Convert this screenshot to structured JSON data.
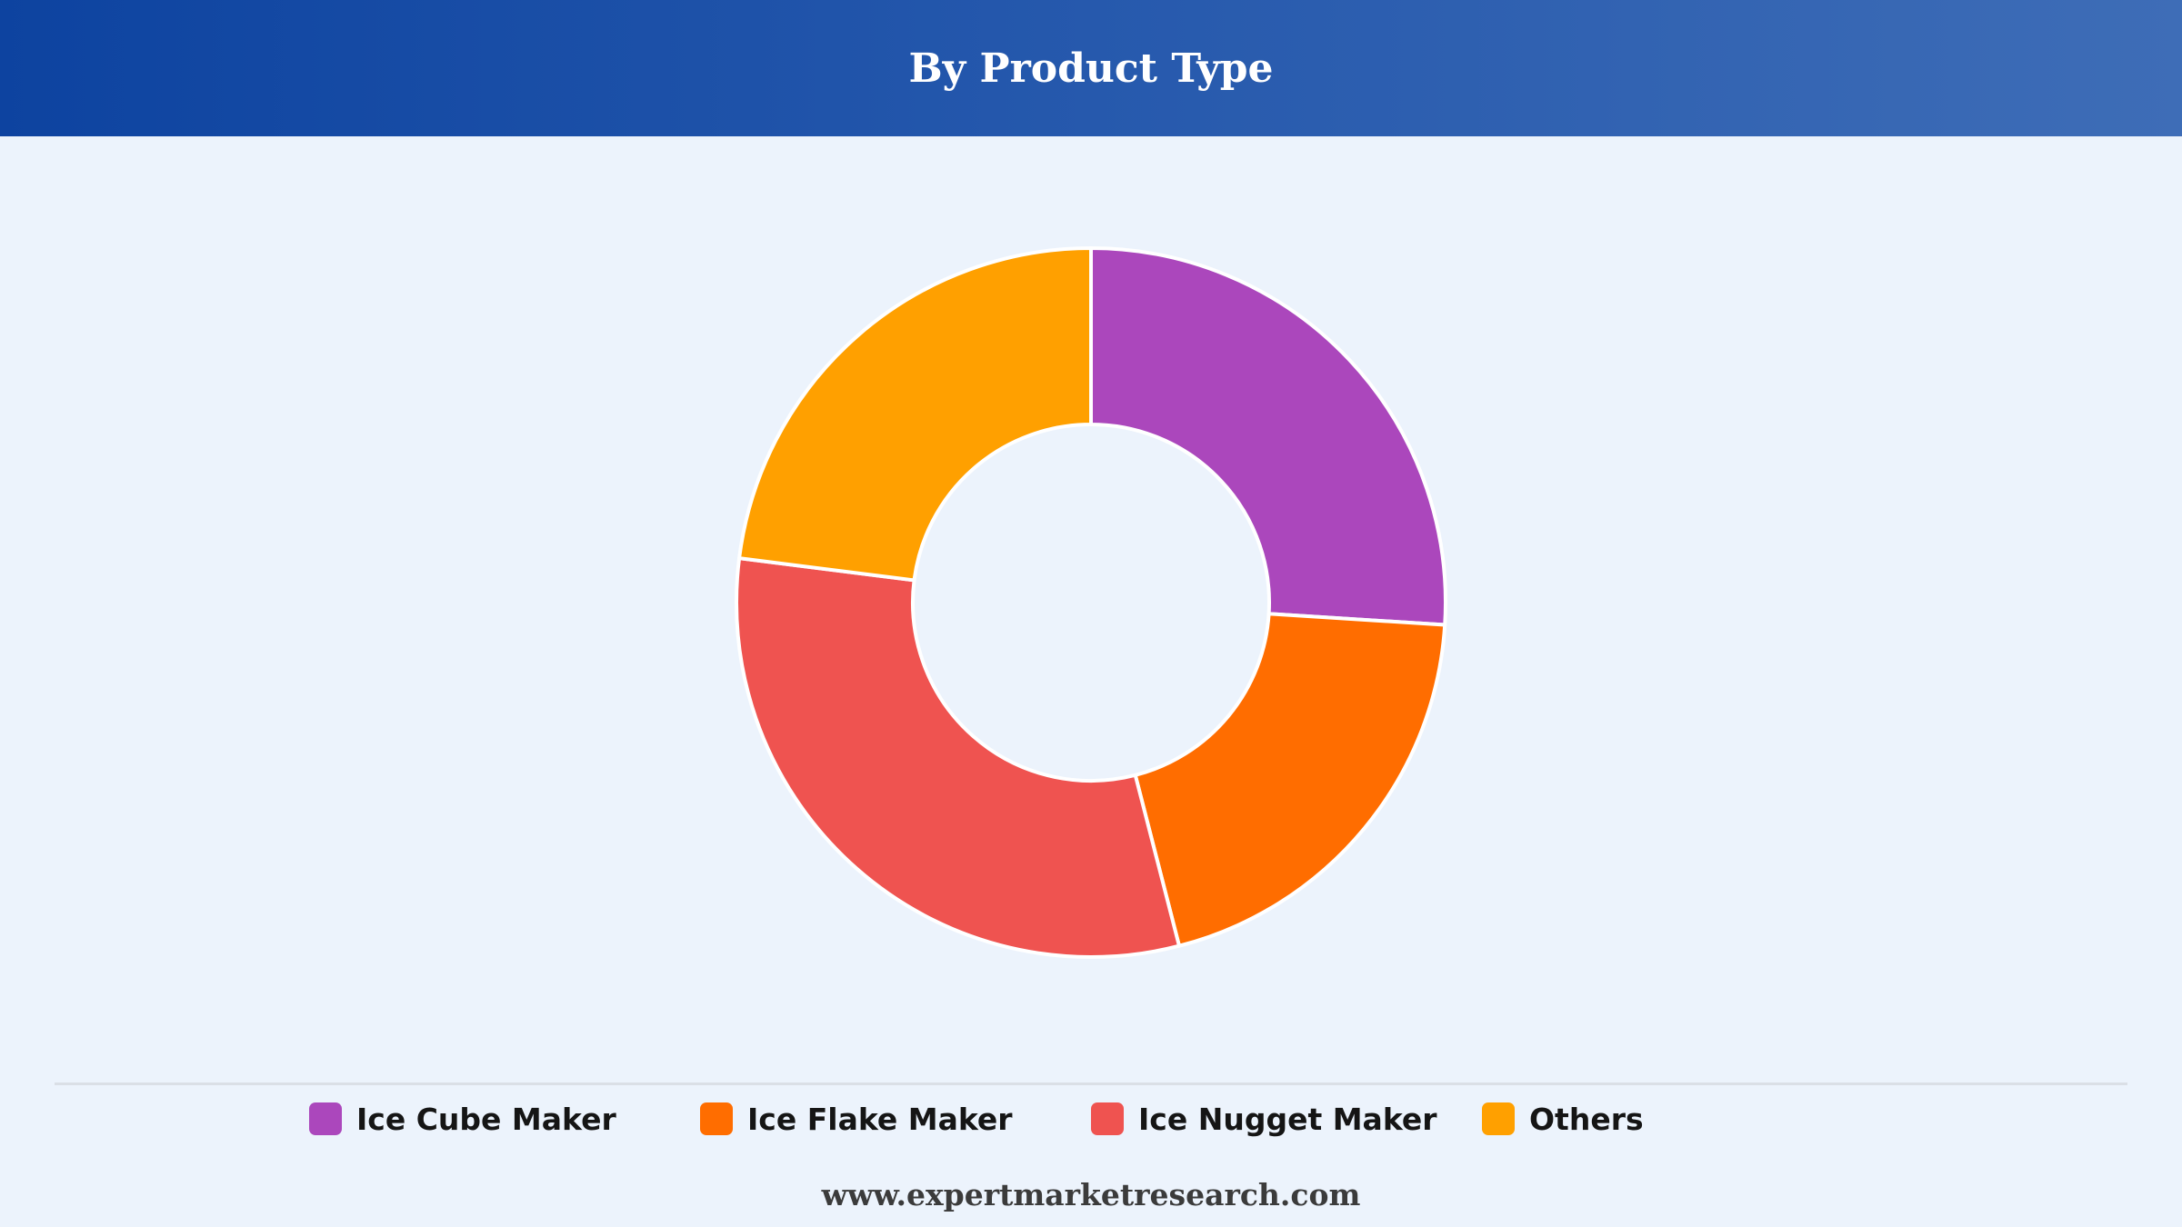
{
  "header": {
    "title": "By Product Type"
  },
  "chart_data": {
    "type": "pie",
    "variant": "donut",
    "title": "By Product Type",
    "categories": [
      "Ice Cube Maker",
      "Ice Flake Maker",
      "Ice Nugget Maker",
      "Others"
    ],
    "values": [
      26,
      20,
      31,
      23
    ],
    "unit": "%",
    "colors": [
      "#ab47bc",
      "#ff6d00",
      "#ef5350",
      "#ffa000"
    ],
    "legend_position": "bottom",
    "start_angle": "top, clockwise"
  },
  "legend": {
    "items": [
      {
        "label": "Ice Cube Maker",
        "color": "#ab47bc"
      },
      {
        "label": "Ice Flake Maker",
        "color": "#ff6d00"
      },
      {
        "label": "Ice Nugget Maker",
        "color": "#ef5350"
      },
      {
        "label": "Others",
        "color": "#ffa000"
      }
    ]
  },
  "footer": {
    "url": "www.expertmarketresearch.com"
  }
}
